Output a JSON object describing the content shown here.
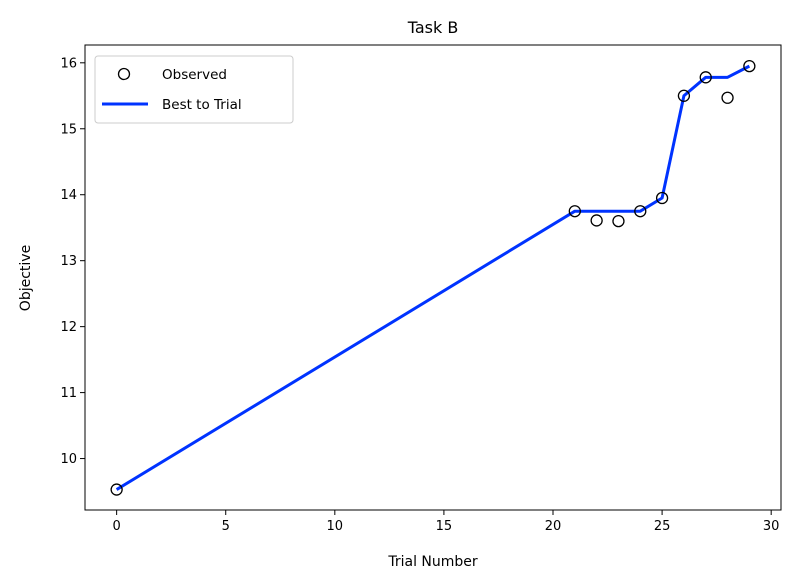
{
  "chart_data": {
    "type": "line",
    "title": "Task B",
    "xlabel": "Trial Number",
    "ylabel": "Objective",
    "xlim": [
      -1.45,
      30.45
    ],
    "ylim": [
      9.22,
      16.27
    ],
    "xticks": [
      0,
      5,
      10,
      15,
      20,
      25,
      30
    ],
    "yticks": [
      10,
      11,
      12,
      13,
      14,
      15,
      16
    ],
    "grid": false,
    "legend_position": "top-left",
    "series": [
      {
        "name": "Observed",
        "kind": "scatter",
        "color": "#000000",
        "x": [
          0,
          21,
          22,
          23,
          24,
          25,
          26,
          27,
          28,
          29
        ],
        "y": [
          9.53,
          13.75,
          13.61,
          13.6,
          13.75,
          13.95,
          15.5,
          15.78,
          15.47,
          15.95
        ]
      },
      {
        "name": "Best to Trial",
        "kind": "line",
        "color": "#0033ff",
        "x": [
          0,
          21,
          22,
          23,
          24,
          25,
          26,
          27,
          28,
          29
        ],
        "y": [
          9.53,
          13.75,
          13.75,
          13.75,
          13.75,
          13.95,
          15.5,
          15.78,
          15.78,
          15.95
        ]
      }
    ]
  }
}
